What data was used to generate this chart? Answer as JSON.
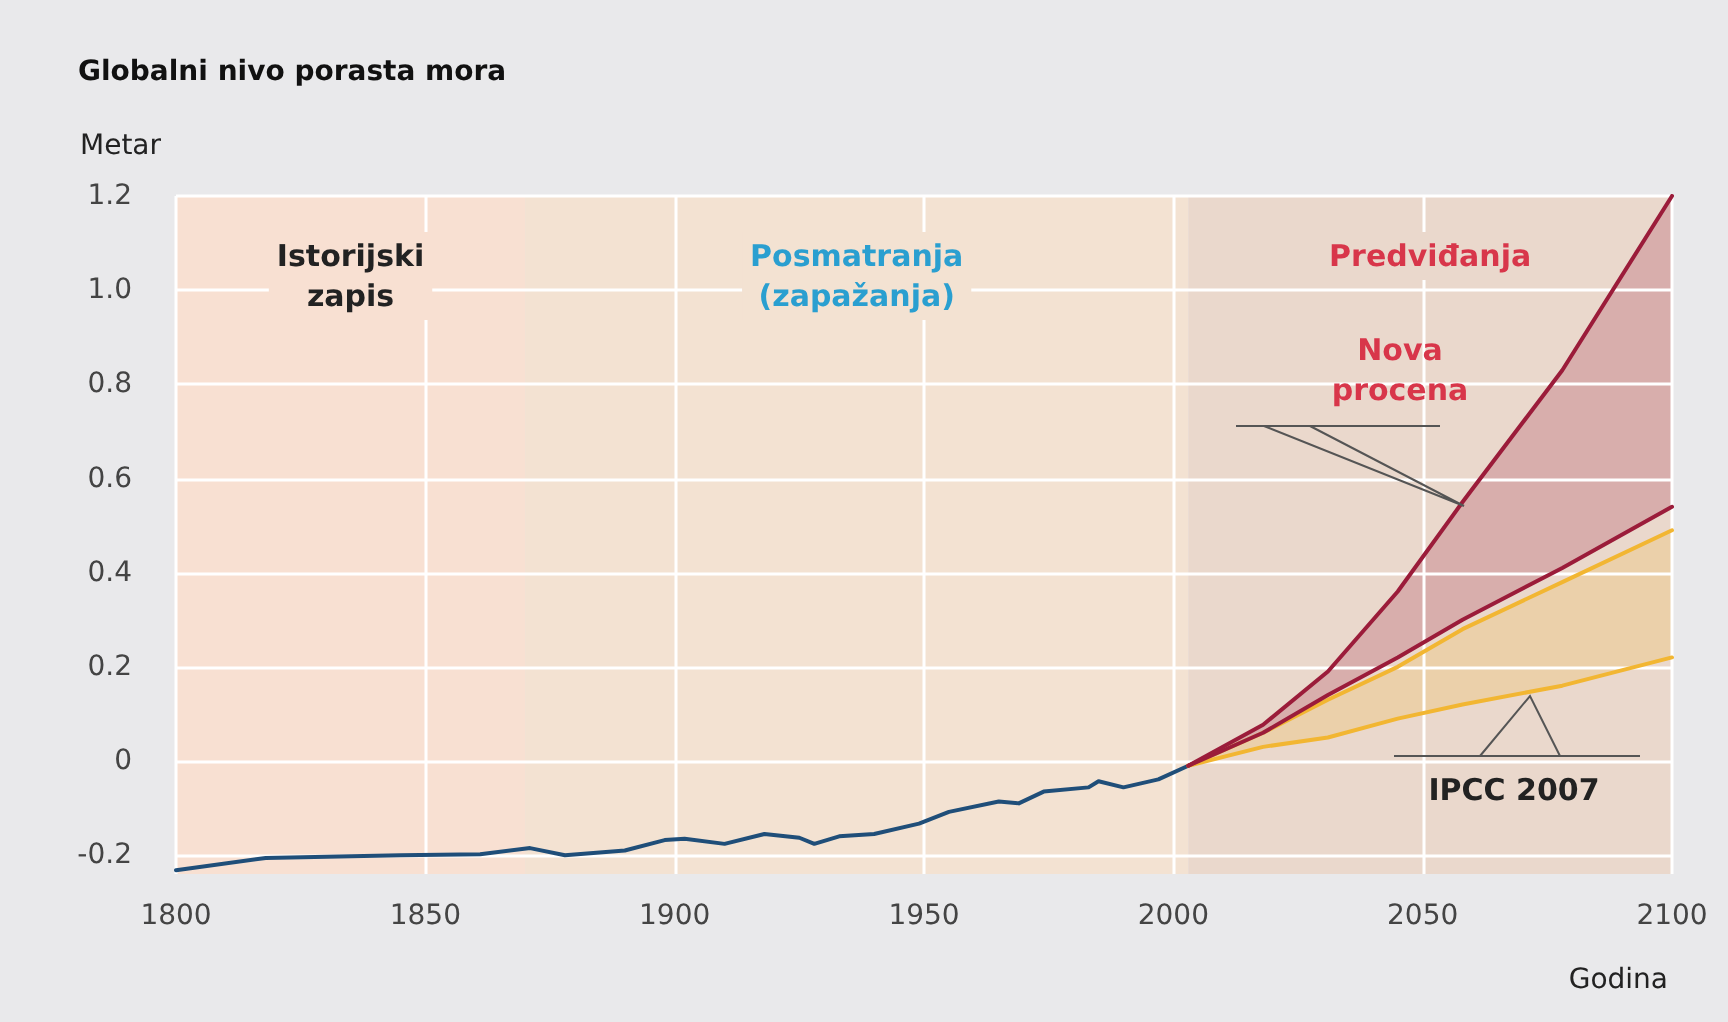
{
  "chart_data": {
    "type": "line",
    "title": "Globalni nivo porasta mora",
    "xlabel": "Godina",
    "ylabel": "Metar",
    "xlim": [
      1800,
      2100
    ],
    "xticks": [
      1800,
      1850,
      1900,
      1950,
      2000,
      2050,
      2100
    ],
    "ylim": [
      -0.24,
      1.2
    ],
    "yticks": [
      {
        "value": -0.2,
        "label": "-0.2"
      },
      0,
      {
        "value": 0.2,
        "label": "0.2"
      },
      {
        "value": 0.4,
        "label": "0.4"
      },
      {
        "value": 0.6,
        "label": "0.6"
      },
      {
        "value": 0.8,
        "label": "0.8"
      },
      {
        "value": 1,
        "label": "1.0"
      },
      {
        "value": 1.2,
        "label": "1.2"
      }
    ],
    "grid": true,
    "series": [
      {
        "color": "#1f4e79",
        "x": [
          1800,
          1818,
          1845,
          1861,
          1871,
          1878,
          1890,
          1898,
          1902,
          1910,
          1918,
          1925,
          1928,
          1933,
          1940,
          1949,
          1955,
          1965,
          1969,
          1974,
          1983,
          1985,
          1990,
          1997,
          2003
        ],
        "values": [
          -0.232,
          -0.206,
          -0.2,
          -0.198,
          -0.185,
          -0.2,
          -0.19,
          -0.168,
          -0.165,
          -0.176,
          -0.155,
          -0.163,
          -0.176,
          -0.16,
          -0.155,
          -0.133,
          -0.108,
          -0.086,
          -0.09,
          -0.065,
          -0.056,
          -0.043,
          -0.056,
          -0.039,
          -0.01
        ]
      },
      {
        "color": "#f2b632",
        "x": [
          2003,
          2018,
          2031,
          2045,
          2058,
          2078,
          2100
        ],
        "values": [
          -0.01,
          0.03,
          0.05,
          0.09,
          0.12,
          0.16,
          0.22
        ]
      },
      {
        "color": "#f2b632",
        "x": [
          2003,
          2018,
          2031,
          2045,
          2058,
          2078,
          2100
        ],
        "values": [
          -0.01,
          0.06,
          0.13,
          0.2,
          0.28,
          0.38,
          0.49
        ],
        "upper": [
          -0.01,
          0.06,
          0.13,
          0.2,
          0.28,
          0.38,
          0.49
        ],
        "lower": [
          -0.01,
          0.03,
          0.05,
          0.09,
          0.12,
          0.16,
          0.22
        ]
      },
      {
        "color": "#9b1c3a",
        "x": [
          2003,
          2018,
          2031,
          2045,
          2058,
          2078,
          2100
        ],
        "values": [
          -0.01,
          0.06,
          0.14,
          0.22,
          0.3,
          0.41,
          0.54
        ]
      },
      {
        "color": "#9b1c3a",
        "x": [
          2003,
          2018,
          2031,
          2045,
          2058,
          2078,
          2100
        ],
        "values": [
          -0.01,
          0.077,
          0.19,
          0.36,
          0.55,
          0.83,
          1.2
        ],
        "upper": [
          -0.01,
          0.077,
          0.19,
          0.36,
          0.55,
          0.83,
          1.2
        ],
        "lower": [
          -0.01,
          0.06,
          0.14,
          0.22,
          0.3,
          0.41,
          0.54
        ]
      }
    ],
    "bands": [
      {
        "axis": "x",
        "from": 1800,
        "to": 1870,
        "label": "Istorijski\nzapis",
        "color": "#f8e0d2"
      },
      {
        "axis": "x",
        "from": 1870,
        "to": 2003,
        "label": "Posmatranja\n(zapažanja)",
        "color": "#f3e2d2"
      },
      {
        "axis": "x",
        "from": 2003,
        "to": 2100,
        "label": "Predviđanja",
        "color": "#ead8cc"
      }
    ],
    "annotations": [
      "Nova\nprocena",
      "IPCC 2007"
    ]
  }
}
